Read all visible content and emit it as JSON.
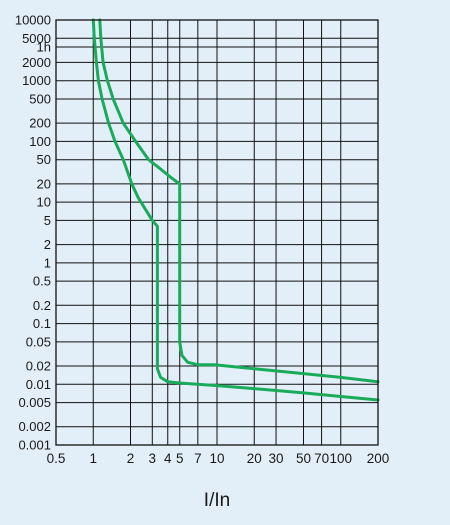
{
  "chart_data": {
    "type": "line",
    "title": "",
    "xlabel": "I/In",
    "ylabel": "",
    "x_scale": "log",
    "x_tick_labels": [
      "0.5",
      "1",
      "2",
      "3",
      "4",
      "5",
      "7",
      "10",
      "20",
      "30",
      "50",
      "70",
      "100",
      "200"
    ],
    "x_ticks": [
      0.5,
      1,
      2,
      3,
      4,
      5,
      7,
      10,
      20,
      30,
      50,
      70,
      100,
      200
    ],
    "xlim": [
      0.5,
      200
    ],
    "y_scale": "log",
    "ylim": [
      0.001,
      10000
    ],
    "y_tick_labels": [
      "10000",
      "5000",
      "1h",
      "2000",
      "1000",
      "500",
      "200",
      "100",
      "50",
      "20",
      "10",
      "5",
      "2",
      "1",
      "0.5",
      "0.2",
      "0.1",
      "0.05",
      "0.02",
      "0.01",
      "0.005",
      "0.002",
      "0.001"
    ],
    "y_ticks": [
      10000,
      5000,
      3600,
      2000,
      1000,
      500,
      200,
      100,
      50,
      20,
      10,
      5,
      2,
      1,
      0.5,
      0.2,
      0.1,
      0.05,
      0.02,
      0.01,
      0.005,
      0.002,
      0.001
    ],
    "grid": true,
    "line_color": "#1aab5a",
    "background_color": "#e2eff8",
    "series": [
      {
        "points": [
          [
            1.13,
            10000
          ],
          [
            1.15,
            5000
          ],
          [
            1.2,
            2000
          ],
          [
            1.3,
            1000
          ],
          [
            1.45,
            500
          ],
          [
            1.75,
            200
          ],
          [
            2.2,
            100
          ],
          [
            2.8,
            50
          ],
          [
            3.5,
            35
          ],
          [
            4.3,
            25
          ],
          [
            5,
            20
          ],
          [
            5,
            0.05
          ],
          [
            5.2,
            0.03
          ],
          [
            5.8,
            0.023
          ],
          [
            7,
            0.021
          ],
          [
            9.5,
            0.021
          ],
          [
            20,
            0.018
          ],
          [
            50,
            0.015
          ],
          [
            100,
            0.013
          ],
          [
            200,
            0.011
          ]
        ]
      },
      {
        "points": [
          [
            1,
            10000
          ],
          [
            1.02,
            5000
          ],
          [
            1.06,
            2000
          ],
          [
            1.1,
            1000
          ],
          [
            1.18,
            500
          ],
          [
            1.33,
            200
          ],
          [
            1.5,
            100
          ],
          [
            1.75,
            50
          ],
          [
            2.05,
            20
          ],
          [
            2.3,
            12
          ],
          [
            2.6,
            8
          ],
          [
            3,
            5
          ],
          [
            3.3,
            4
          ],
          [
            3.3,
            0.018
          ],
          [
            3.5,
            0.013
          ],
          [
            4,
            0.011
          ],
          [
            5,
            0.0105
          ],
          [
            10,
            0.0095
          ],
          [
            20,
            0.0085
          ],
          [
            50,
            0.0072
          ],
          [
            100,
            0.0063
          ],
          [
            200,
            0.0055
          ]
        ]
      }
    ]
  }
}
